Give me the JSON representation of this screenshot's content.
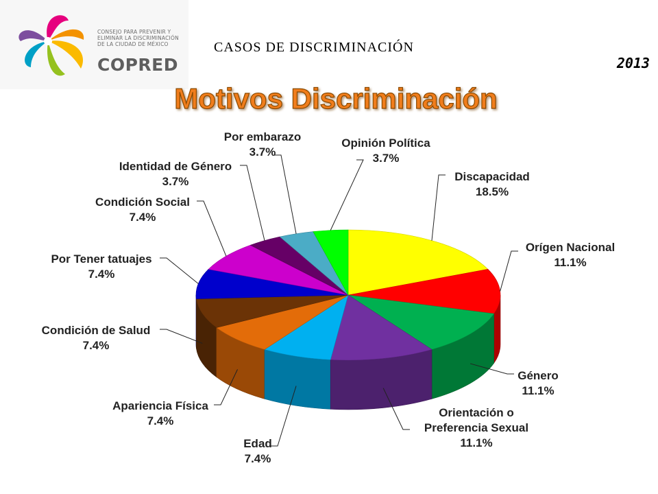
{
  "logo": {
    "lines": [
      "CONSEJO PARA PREVENIR Y",
      "ELIMINAR LA DISCRIMINACIÓN",
      "DE LA CIUDAD DE MÉXICO"
    ],
    "name": "COPRED",
    "colors": [
      "#e6007e",
      "#f39200",
      "#fbba00",
      "#95c11f",
      "#00a0c6",
      "#7d4e9e"
    ]
  },
  "header": {
    "label": "",
    "line_a": "CASOS DE DISCRIMINACIÓN",
    "line_b": "",
    "period_a": "",
    "period_year": "2013"
  },
  "chart_data": {
    "type": "pie",
    "title": "Motivos Discriminación",
    "title_color": "#f07d1a",
    "slices": [
      {
        "label": "Discapacidad",
        "value": 18.5,
        "display": "18.5%",
        "color": "#ffff00"
      },
      {
        "label": "Orígen Nacional",
        "value": 11.1,
        "display": "11.1%",
        "color": "#ff0000"
      },
      {
        "label": "Género",
        "value": 11.1,
        "display": "11.1%",
        "color": "#00b050"
      },
      {
        "label": "Orientación o Preferencia Sexual",
        "value": 11.1,
        "display": "11.1%",
        "color": "#7030a0"
      },
      {
        "label": "Edad",
        "value": 7.4,
        "display": "7.4%",
        "color": "#00b0f0"
      },
      {
        "label": "Apariencia Física",
        "value": 7.4,
        "display": "7.4%",
        "color": "#e36c09"
      },
      {
        "label": "Condición de Salud",
        "value": 7.4,
        "display": "7.4%",
        "color": "#6b3306"
      },
      {
        "label": "Por Tener tatuajes",
        "value": 7.4,
        "display": "7.4%",
        "color": "#0000cc"
      },
      {
        "label": "Condición Social",
        "value": 7.4,
        "display": "7.4%",
        "color": "#cc00cc"
      },
      {
        "label": "Identidad de Género",
        "value": 3.7,
        "display": "3.7%",
        "color": "#660066"
      },
      {
        "label": "Por embarazo",
        "value": 3.7,
        "display": "3.7%",
        "color": "#4bacc6"
      },
      {
        "label": "Opinión Política",
        "value": 3.7,
        "display": "3.7%",
        "color": "#00ff00"
      }
    ]
  }
}
